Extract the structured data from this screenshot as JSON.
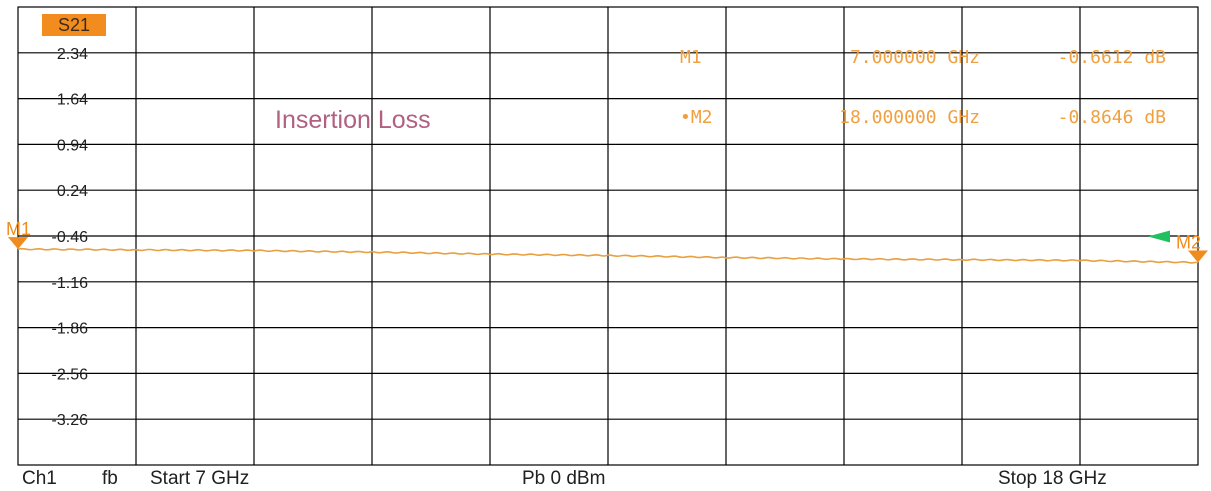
{
  "trace_label": "S21",
  "annotation": "Insertion Loss",
  "markers": [
    {
      "name": "M1",
      "active": false,
      "frequency": "7.000000 GHz",
      "value": "-0.6612 dB"
    },
    {
      "name": "M2",
      "active": true,
      "frequency": "18.000000 GHz",
      "value": "-0.8646 dB"
    }
  ],
  "footer": {
    "channel": "Ch1",
    "mode": "fb",
    "start": "Start  7 GHz",
    "power": "Pb   0 dBm",
    "stop": "Stop  18 GHz"
  },
  "colors": {
    "trace": "#e8a040",
    "marker": "#f08c1e",
    "active_marker_arrow": "#20c060",
    "grid": "#000000"
  },
  "chart_data": {
    "type": "line",
    "title": "Insertion Loss",
    "xlabel": "",
    "ylabel": "",
    "xlim": [
      7,
      18
    ],
    "x_unit": "GHz",
    "y_unit": "dB",
    "ylim": [
      -3.96,
      3.04
    ],
    "y_ticks": [
      2.34,
      1.64,
      0.94,
      0.24,
      -0.46,
      -1.16,
      -1.86,
      -2.56,
      -3.26
    ],
    "y_tick_labels": [
      "2.34",
      "1.64",
      "0.94",
      "0.24",
      "-0.46",
      "-1.16",
      "-1.86",
      "-2.56",
      "-3.26"
    ],
    "x_divisions": 10,
    "grid": true,
    "series": [
      {
        "name": "S21",
        "x": [
          7.0,
          8.1,
          9.2,
          10.3,
          11.4,
          12.5,
          13.6,
          14.7,
          15.8,
          16.9,
          18.0
        ],
        "y": [
          -0.661,
          -0.672,
          -0.683,
          -0.706,
          -0.737,
          -0.758,
          -0.789,
          -0.811,
          -0.822,
          -0.834,
          -0.865
        ]
      }
    ],
    "markers": [
      {
        "name": "M1",
        "x": 7.0,
        "y": -0.6612
      },
      {
        "name": "M2",
        "x": 18.0,
        "y": -0.8646
      }
    ]
  }
}
